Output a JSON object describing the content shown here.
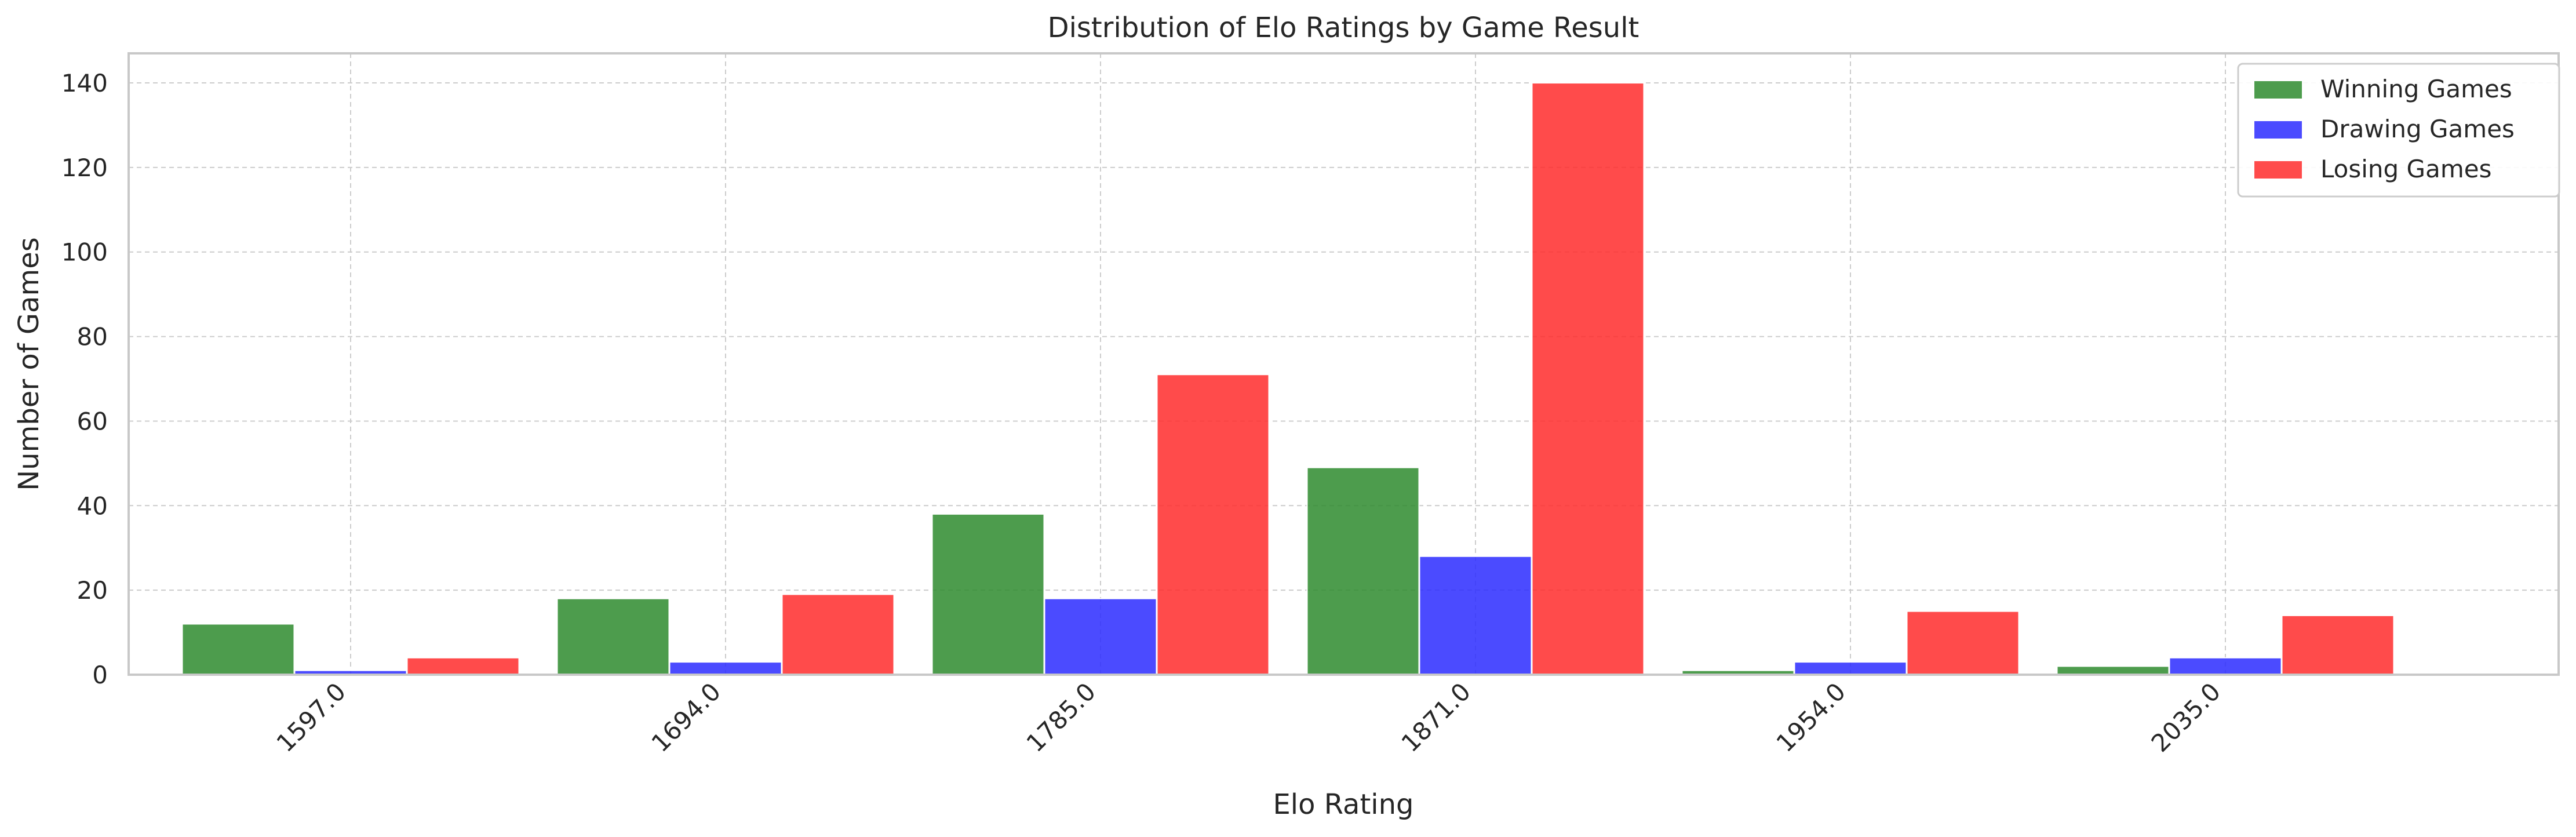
{
  "chart_data": {
    "type": "bar",
    "title": "Distribution of Elo Ratings by Game Result",
    "xlabel": "Elo Rating",
    "ylabel": "Number of Games",
    "categories": [
      "1597.0",
      "1694.0",
      "1785.0",
      "1871.0",
      "1954.0",
      "2035.0"
    ],
    "series": [
      {
        "name": "Winning Games",
        "color": "#2e8b2e",
        "values": [
          12,
          18,
          38,
          49,
          1,
          2
        ]
      },
      {
        "name": "Drawing Games",
        "color": "#2b2bff",
        "values": [
          1,
          3,
          18,
          28,
          3,
          4
        ]
      },
      {
        "name": "Losing Games",
        "color": "#ff2b2b",
        "values": [
          4,
          19,
          71,
          140,
          15,
          14
        ]
      }
    ],
    "ylim": [
      0,
      147
    ],
    "yticks": [
      0,
      20,
      40,
      60,
      80,
      100,
      120,
      140
    ],
    "grid": true,
    "legend": "top-right"
  }
}
